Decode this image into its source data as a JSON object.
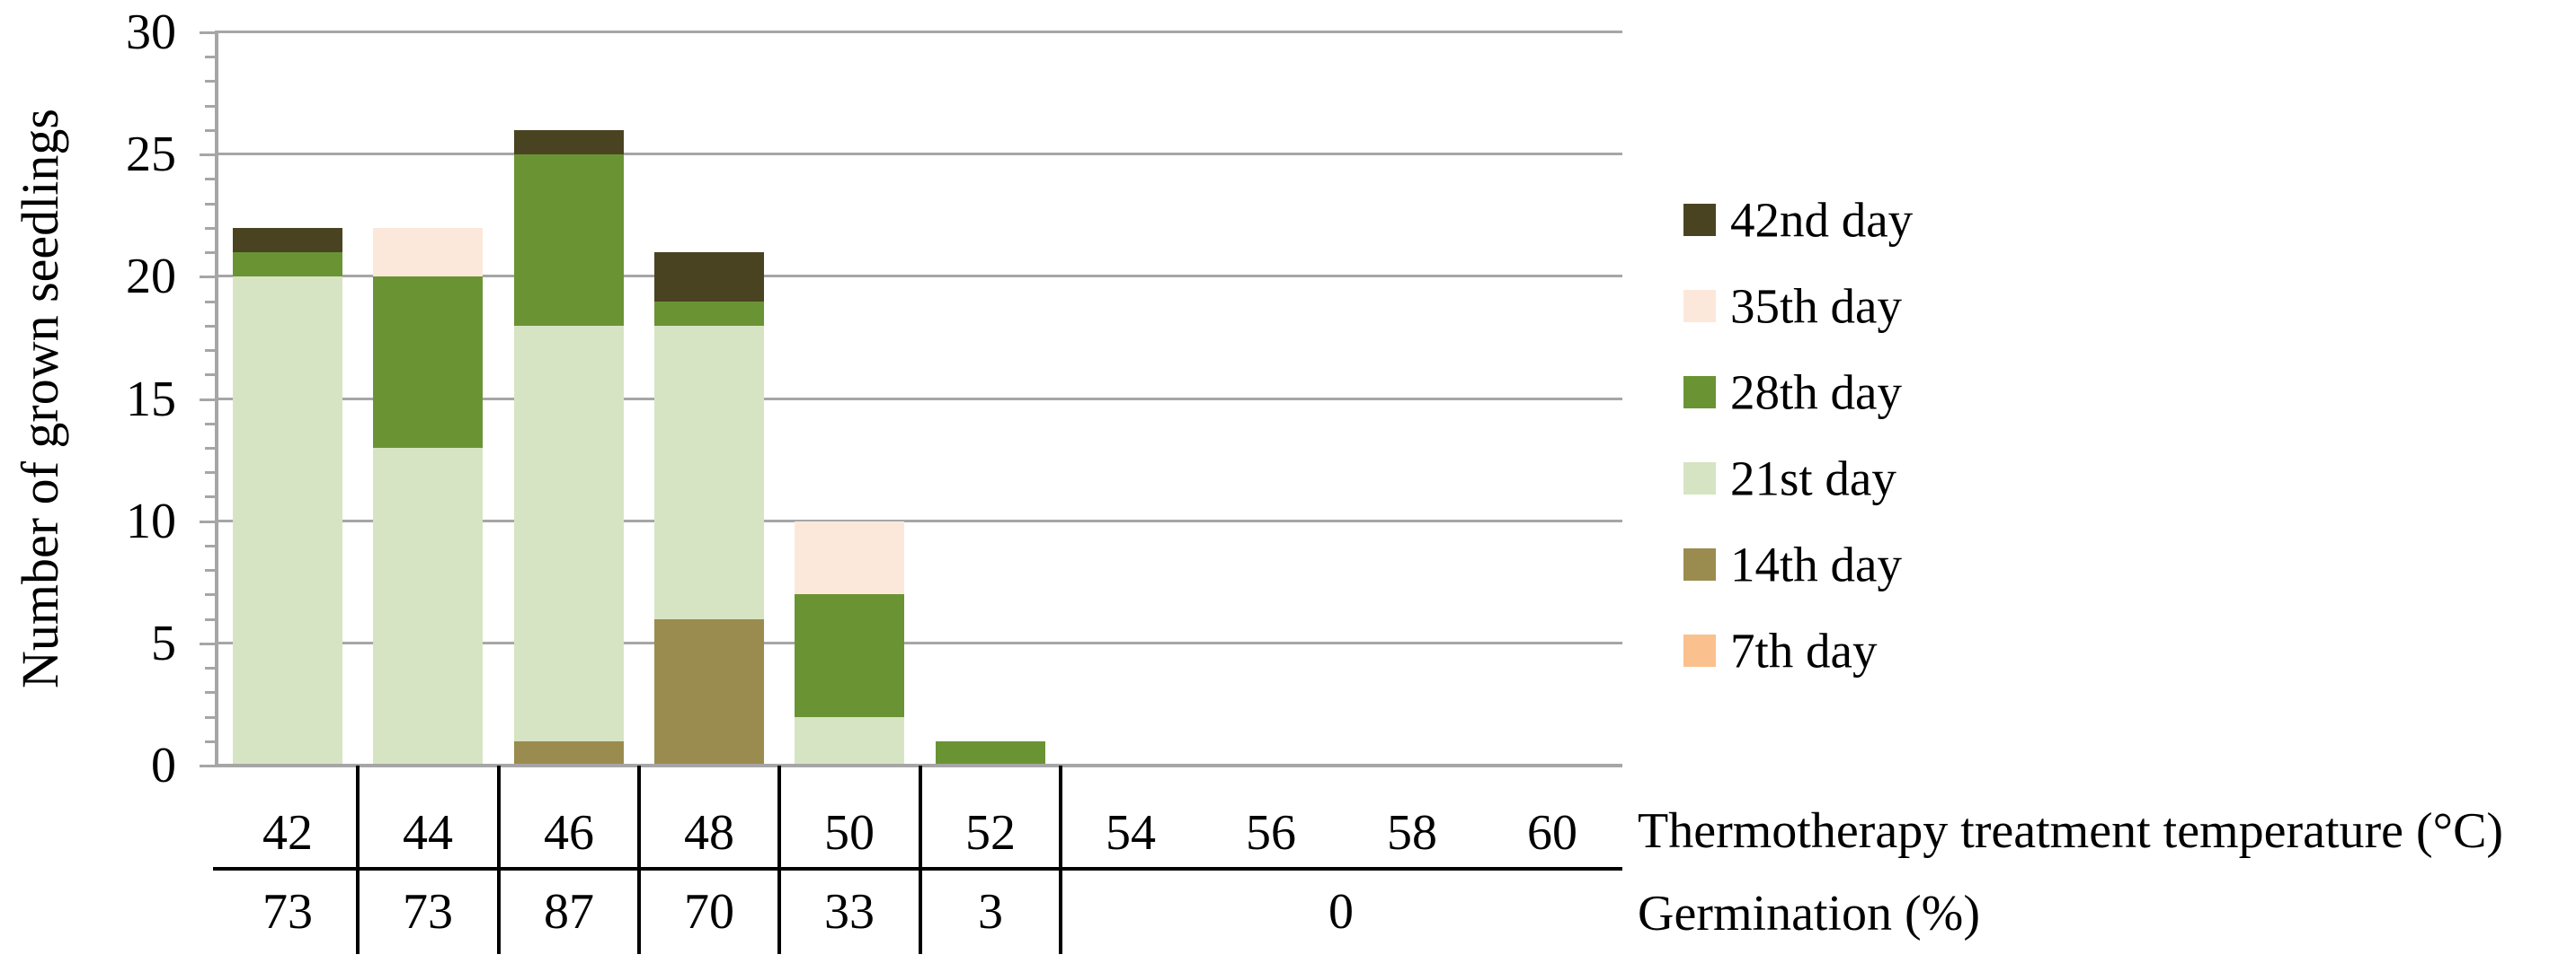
{
  "chart_data": {
    "type": "bar",
    "stacked": true,
    "ylabel": "Number of grown seedlings",
    "xlabel": "Thermotherapy treatment temperature (°C)",
    "xlabel2": "Germination (%)",
    "ylim": [
      0,
      30
    ],
    "yticks": [
      0,
      5,
      10,
      15,
      20,
      25,
      30
    ],
    "y_minor_tick_step": 1,
    "grid": true,
    "legend_position": "right",
    "categories": [
      "42",
      "44",
      "46",
      "48",
      "50",
      "52",
      "54",
      "56",
      "58",
      "60"
    ],
    "series": [
      {
        "name": "7th day",
        "color": "#FAC08D",
        "values": [
          0,
          0,
          0,
          0,
          0,
          0,
          0,
          0,
          0,
          0
        ]
      },
      {
        "name": "14th day",
        "color": "#9A8C4E",
        "values": [
          0,
          0,
          1,
          6,
          0,
          0,
          0,
          0,
          0,
          0
        ]
      },
      {
        "name": "21st day",
        "color": "#D6E4C3",
        "values": [
          20,
          13,
          17,
          12,
          2,
          0,
          0,
          0,
          0,
          0
        ]
      },
      {
        "name": "28th day",
        "color": "#6A9434",
        "values": [
          1,
          7,
          7,
          1,
          5,
          1,
          0,
          0,
          0,
          0
        ]
      },
      {
        "name": "35th day",
        "color": "#FCE8DA",
        "values": [
          0,
          2,
          0,
          0,
          3,
          0,
          0,
          0,
          0,
          0
        ]
      },
      {
        "name": "42nd day",
        "color": "#4A4321",
        "values": [
          1,
          0,
          1,
          2,
          0,
          0,
          0,
          0,
          0,
          0
        ]
      }
    ],
    "bar_totals": [
      22,
      22,
      26,
      21,
      10,
      1,
      0,
      0,
      0,
      0
    ],
    "legend_order_top_to_bottom": [
      "42nd day",
      "35th day",
      "28th day",
      "21st day",
      "14th day",
      "7th day"
    ],
    "germination_row": {
      "cells": [
        {
          "label": "73",
          "span": 1
        },
        {
          "label": "73",
          "span": 1
        },
        {
          "label": "87",
          "span": 1
        },
        {
          "label": "70",
          "span": 1
        },
        {
          "label": "33",
          "span": 1
        },
        {
          "label": "3",
          "span": 1
        },
        {
          "label": "0",
          "span": 4
        }
      ]
    },
    "colors": {
      "grid": "#A6A6A6",
      "axis": "#A6A6A6",
      "table_lines": "#000000",
      "text": "#000000",
      "background": "#FFFFFF"
    }
  }
}
